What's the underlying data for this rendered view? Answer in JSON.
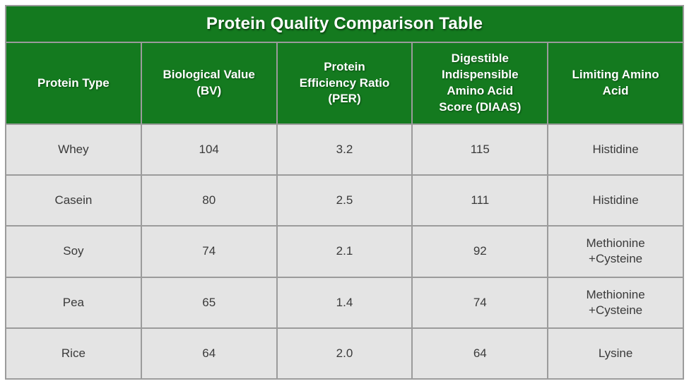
{
  "table": {
    "title": "Protein Quality Comparison Table",
    "header_cells": [
      "Protein Type",
      "Biological Value\n(BV)",
      "Protein\nEfficiency Ratio\n(PER)",
      "Digestible\nIndispensible\nAmino Acid\nScore (DIAAS)",
      "Limiting Amino\nAcid"
    ],
    "rows": [
      {
        "cells": [
          "Whey",
          "104",
          "3.2",
          "115",
          "Histidine"
        ]
      },
      {
        "cells": [
          "Casein",
          "80",
          "2.5",
          "111",
          "Histidine"
        ]
      },
      {
        "cells": [
          "Soy",
          "74",
          "2.1",
          "92",
          "Methionine\n+Cysteine"
        ]
      },
      {
        "cells": [
          "Pea",
          "65",
          "1.4",
          "74",
          "Methionine\n+Cysteine"
        ]
      },
      {
        "cells": [
          "Rice",
          "64",
          "2.0",
          "64",
          "Lysine"
        ]
      }
    ]
  },
  "colors": {
    "header_green": "#147a1f",
    "header_text": "#ffffff",
    "row_background": "#e4e4e4",
    "body_text": "#3a3a3a",
    "grid_border": "#9b9b9b",
    "outer_border": "#5f5f5f"
  },
  "chart_data": {
    "type": "table",
    "title": "Protein Quality Comparison Table",
    "columns": [
      "Protein Type",
      "Biological Value (BV)",
      "Protein Efficiency Ratio (PER)",
      "Digestible Indispensible Amino Acid Score (DIAAS)",
      "Limiting Amino Acid"
    ],
    "rows": [
      [
        "Whey",
        104,
        3.2,
        115,
        "Histidine"
      ],
      [
        "Casein",
        80,
        2.5,
        111,
        "Histidine"
      ],
      [
        "Soy",
        74,
        2.1,
        92,
        "Methionine +Cysteine"
      ],
      [
        "Pea",
        65,
        1.4,
        74,
        "Methionine +Cysteine"
      ],
      [
        "Rice",
        64,
        2.0,
        64,
        "Lysine"
      ]
    ]
  }
}
